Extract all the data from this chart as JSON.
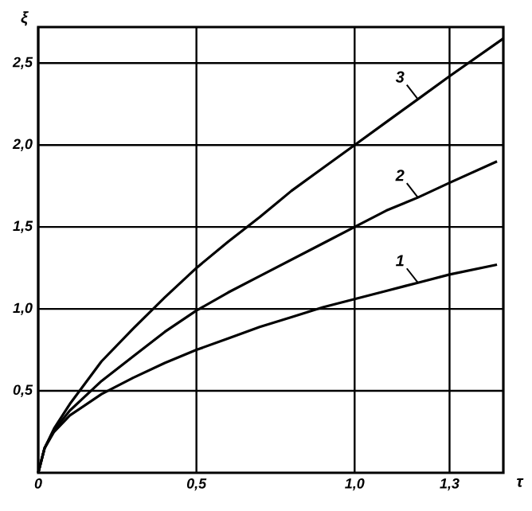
{
  "chart_data": {
    "type": "line",
    "xlabel": "τ",
    "ylabel": "ξ",
    "xlim": [
      0,
      1.47
    ],
    "ylim": [
      0,
      2.72
    ],
    "xticks": [
      0,
      {
        "value": 0.5,
        "label": "0,5"
      },
      {
        "value": 1.0,
        "label": "1,0"
      },
      {
        "value": 1.3,
        "label": "1,3"
      }
    ],
    "yticks": [
      {
        "value": 0.5,
        "label": "0,5"
      },
      {
        "value": 1.0,
        "label": "1,0"
      },
      {
        "value": 1.5,
        "label": "1,5"
      },
      {
        "value": 2.0,
        "label": "2,0"
      },
      {
        "value": 2.5,
        "label": "2,5"
      }
    ],
    "grid": true,
    "marker": "none",
    "line_style": "solid",
    "series": [
      {
        "name": "1",
        "color": "#000000",
        "x": [
          0,
          0.02,
          0.05,
          0.1,
          0.2,
          0.3,
          0.4,
          0.5,
          0.6,
          0.7,
          0.8,
          0.9,
          1.0,
          1.1,
          1.2,
          1.3,
          1.45
        ],
        "values": [
          0,
          0.15,
          0.25,
          0.35,
          0.48,
          0.58,
          0.67,
          0.75,
          0.82,
          0.89,
          0.95,
          1.01,
          1.06,
          1.11,
          1.16,
          1.21,
          1.27
        ]
      },
      {
        "name": "2",
        "color": "#000000",
        "x": [
          0,
          0.02,
          0.05,
          0.1,
          0.2,
          0.3,
          0.4,
          0.5,
          0.6,
          0.7,
          0.8,
          0.9,
          1.0,
          1.1,
          1.2,
          1.3,
          1.45
        ],
        "values": [
          0,
          0.15,
          0.26,
          0.38,
          0.56,
          0.71,
          0.86,
          0.99,
          1.1,
          1.2,
          1.3,
          1.4,
          1.5,
          1.6,
          1.68,
          1.77,
          1.9
        ]
      },
      {
        "name": "3",
        "color": "#000000",
        "x": [
          0,
          0.02,
          0.05,
          0.1,
          0.2,
          0.3,
          0.4,
          0.5,
          0.6,
          0.7,
          0.8,
          0.9,
          1.0,
          1.1,
          1.2,
          1.3,
          1.47
        ],
        "values": [
          0,
          0.15,
          0.27,
          0.42,
          0.68,
          0.88,
          1.07,
          1.25,
          1.41,
          1.56,
          1.72,
          1.86,
          2.0,
          2.14,
          2.28,
          2.42,
          2.65
        ]
      }
    ]
  }
}
